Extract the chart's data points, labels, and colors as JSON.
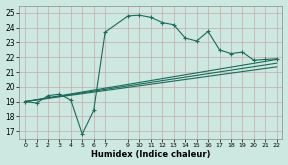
{
  "xlabel": "Humidex (Indice chaleur)",
  "bg_color": "#cce8e0",
  "grid_color": "#b0d4cc",
  "line_color": "#1a6b5a",
  "xlim": [
    -0.5,
    22.5
  ],
  "ylim": [
    16.5,
    25.5
  ],
  "xticks": [
    0,
    1,
    2,
    3,
    4,
    5,
    6,
    7,
    9,
    10,
    11,
    12,
    13,
    14,
    15,
    16,
    17,
    18,
    19,
    20,
    21,
    22
  ],
  "yticks": [
    17,
    18,
    19,
    20,
    21,
    22,
    23,
    24,
    25
  ],
  "main_line": {
    "x": [
      0,
      1,
      2,
      3,
      4,
      5,
      6,
      7,
      9,
      10,
      11,
      12,
      13,
      14,
      15,
      16,
      17,
      18,
      19,
      20,
      21,
      22
    ],
    "y": [
      19.0,
      18.9,
      19.4,
      19.5,
      19.1,
      16.8,
      18.4,
      23.7,
      24.8,
      24.85,
      24.7,
      24.35,
      24.2,
      23.3,
      23.1,
      23.75,
      22.5,
      22.25,
      22.35,
      21.8,
      21.85,
      21.9
    ]
  },
  "straight_lines": [
    {
      "x": [
        0,
        22
      ],
      "y": [
        19.0,
        21.85
      ]
    },
    {
      "x": [
        0,
        22
      ],
      "y": [
        19.0,
        21.6
      ]
    },
    {
      "x": [
        0,
        22
      ],
      "y": [
        19.0,
        21.35
      ]
    }
  ]
}
